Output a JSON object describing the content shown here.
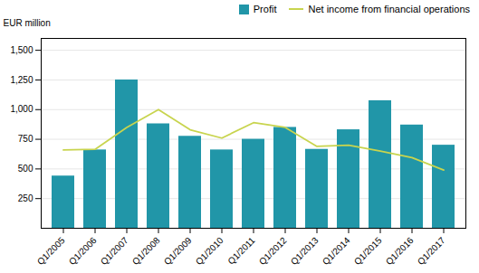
{
  "chart_data": {
    "type": "bar",
    "ylabel": "EUR million",
    "categories": [
      "Q1/2005",
      "Q1/2006",
      "Q1/2007",
      "Q1/2008",
      "Q1/2009",
      "Q1/2010",
      "Q1/2011",
      "Q1/2012",
      "Q1/2013",
      "Q1/2014",
      "Q1/2015",
      "Q1/2016",
      "Q1/2017"
    ],
    "series": [
      {
        "name": "Profit",
        "type": "bar",
        "color": "#2196a8",
        "values": [
          440,
          660,
          1250,
          880,
          775,
          660,
          750,
          850,
          665,
          830,
          1075,
          870,
          700
        ]
      },
      {
        "name": "Net income from financial operations",
        "type": "line",
        "color": "#c8d44e",
        "values": [
          660,
          665,
          850,
          1000,
          830,
          760,
          890,
          850,
          690,
          700,
          650,
          595,
          490
        ]
      }
    ],
    "ylim": [
      0,
      1600
    ],
    "yticks": [
      250,
      500,
      750,
      1000,
      1250,
      1500
    ],
    "grid": true,
    "legend": "upper right"
  }
}
